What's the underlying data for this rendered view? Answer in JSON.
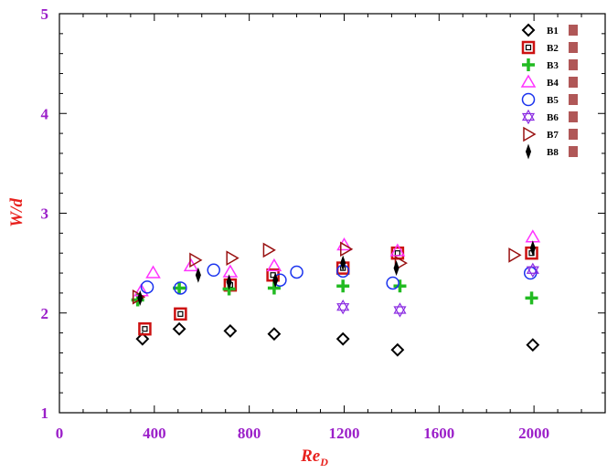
{
  "chart_data": {
    "type": "scatter",
    "xlabel_main": "Re",
    "xlabel_sub": "D",
    "ylabel": "W/d",
    "xlim": [
      0,
      2300
    ],
    "ylim": [
      1,
      5
    ],
    "xticks": [
      0,
      400,
      800,
      1200,
      1600,
      2000
    ],
    "yticks": [
      1,
      2,
      3,
      4,
      5
    ],
    "legend_position": "top-right",
    "series": [
      {
        "name": "B1",
        "marker": "diamond",
        "color": "#000000",
        "filled": false,
        "x": [
          350,
          505,
          720,
          905,
          1195,
          1425,
          1995
        ],
        "y": [
          1.74,
          1.84,
          1.82,
          1.79,
          1.74,
          1.63,
          1.68
        ]
      },
      {
        "name": "B2",
        "marker": "square",
        "color": "#cc1111",
        "filled": false,
        "x": [
          360,
          510,
          720,
          900,
          1195,
          1425,
          1990
        ],
        "y": [
          1.84,
          1.99,
          2.28,
          2.38,
          2.45,
          2.6,
          2.6
        ]
      },
      {
        "name": "B3",
        "marker": "plus",
        "color": "#22bb22",
        "filled": true,
        "x": [
          330,
          505,
          715,
          905,
          1195,
          1435,
          1990
        ],
        "y": [
          2.13,
          2.25,
          2.24,
          2.25,
          2.27,
          2.27,
          2.15
        ]
      },
      {
        "name": "B4",
        "marker": "triangle-up",
        "color": "#ff33ff",
        "filled": false,
        "x": [
          345,
          395,
          555,
          720,
          905,
          1200,
          1425,
          1995
        ],
        "y": [
          2.22,
          2.4,
          2.47,
          2.41,
          2.47,
          2.68,
          2.62,
          2.76
        ]
      },
      {
        "name": "B5",
        "marker": "circle",
        "color": "#1a33ee",
        "filled": false,
        "x": [
          370,
          510,
          650,
          930,
          1000,
          1195,
          1405,
          1985
        ],
        "y": [
          2.26,
          2.25,
          2.43,
          2.33,
          2.41,
          2.42,
          2.3,
          2.4
        ]
      },
      {
        "name": "B6",
        "marker": "star",
        "color": "#8a2be2",
        "filled": false,
        "x": [
          1195,
          1435,
          1995
        ],
        "y": [
          2.06,
          2.03,
          2.43
        ]
      },
      {
        "name": "B7",
        "marker": "triangle-right",
        "color": "#991111",
        "filled": false,
        "x": [
          330,
          570,
          725,
          880,
          1205,
          1435,
          1915
        ],
        "y": [
          2.16,
          2.53,
          2.55,
          2.63,
          2.64,
          2.5,
          2.58
        ]
      },
      {
        "name": "B8",
        "marker": "thin-diamond",
        "color": "#000000",
        "filled": true,
        "x": [
          340,
          585,
          715,
          910,
          1195,
          1420,
          1995
        ],
        "y": [
          2.15,
          2.38,
          2.31,
          2.33,
          2.5,
          2.45,
          2.65
        ]
      }
    ]
  }
}
